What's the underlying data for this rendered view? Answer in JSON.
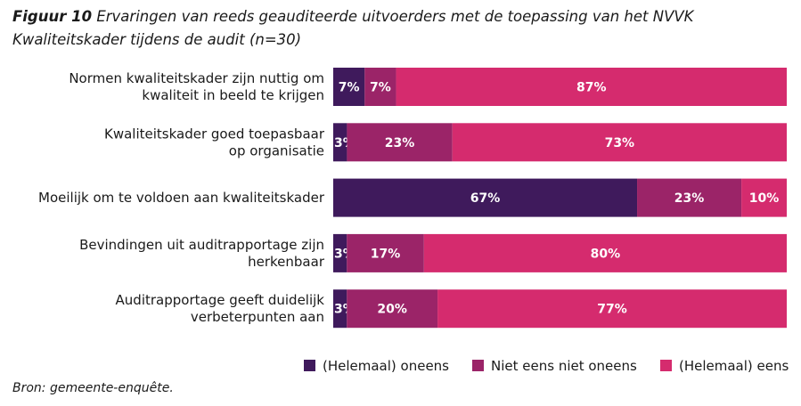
{
  "header": {
    "figure_label": "Figuur 10",
    "caption": "Ervaringen van reeds geauditeerde uitvoerders met de toepassing van het NVVK Kwaliteitskader tijdens de audit (n=30)"
  },
  "footer": {
    "source": "Bron: gemeente-enquête."
  },
  "chart_data": {
    "type": "bar",
    "orientation": "horizontal",
    "stacked": true,
    "percent_scale": true,
    "categories": [
      [
        "Normen kwaliteitskader zijn nuttig om",
        "kwaliteit in beeld te krijgen"
      ],
      [
        "Kwaliteitskader goed toepasbaar",
        "op organisatie"
      ],
      [
        "Moeilijk om te voldoen aan kwaliteitskader"
      ],
      [
        "Bevindingen uit auditrapportage zijn",
        "herkenbaar"
      ],
      [
        "Auditrapportage geeft duidelijk",
        "verbeterpunten aan"
      ]
    ],
    "series": [
      {
        "name": "(Helemaal) oneens",
        "color": "#3f1a5c",
        "values": [
          7,
          3,
          67,
          3,
          3
        ],
        "labels": [
          "7%",
          "3%",
          "67%",
          "3%",
          "3%"
        ]
      },
      {
        "name": "Niet eens niet oneens",
        "color": "#9b2468",
        "values": [
          7,
          23,
          23,
          17,
          20
        ],
        "labels": [
          "7%",
          "23%",
          "23%",
          "17%",
          "20%"
        ]
      },
      {
        "name": "(Helemaal) eens",
        "color": "#d52b6e",
        "values": [
          87,
          73,
          10,
          80,
          77
        ],
        "labels": [
          "87%",
          "73%",
          "10%",
          "80%",
          "77%"
        ]
      }
    ],
    "xlim": [
      0,
      100
    ],
    "grid": false,
    "legend_position": "bottom-right"
  }
}
